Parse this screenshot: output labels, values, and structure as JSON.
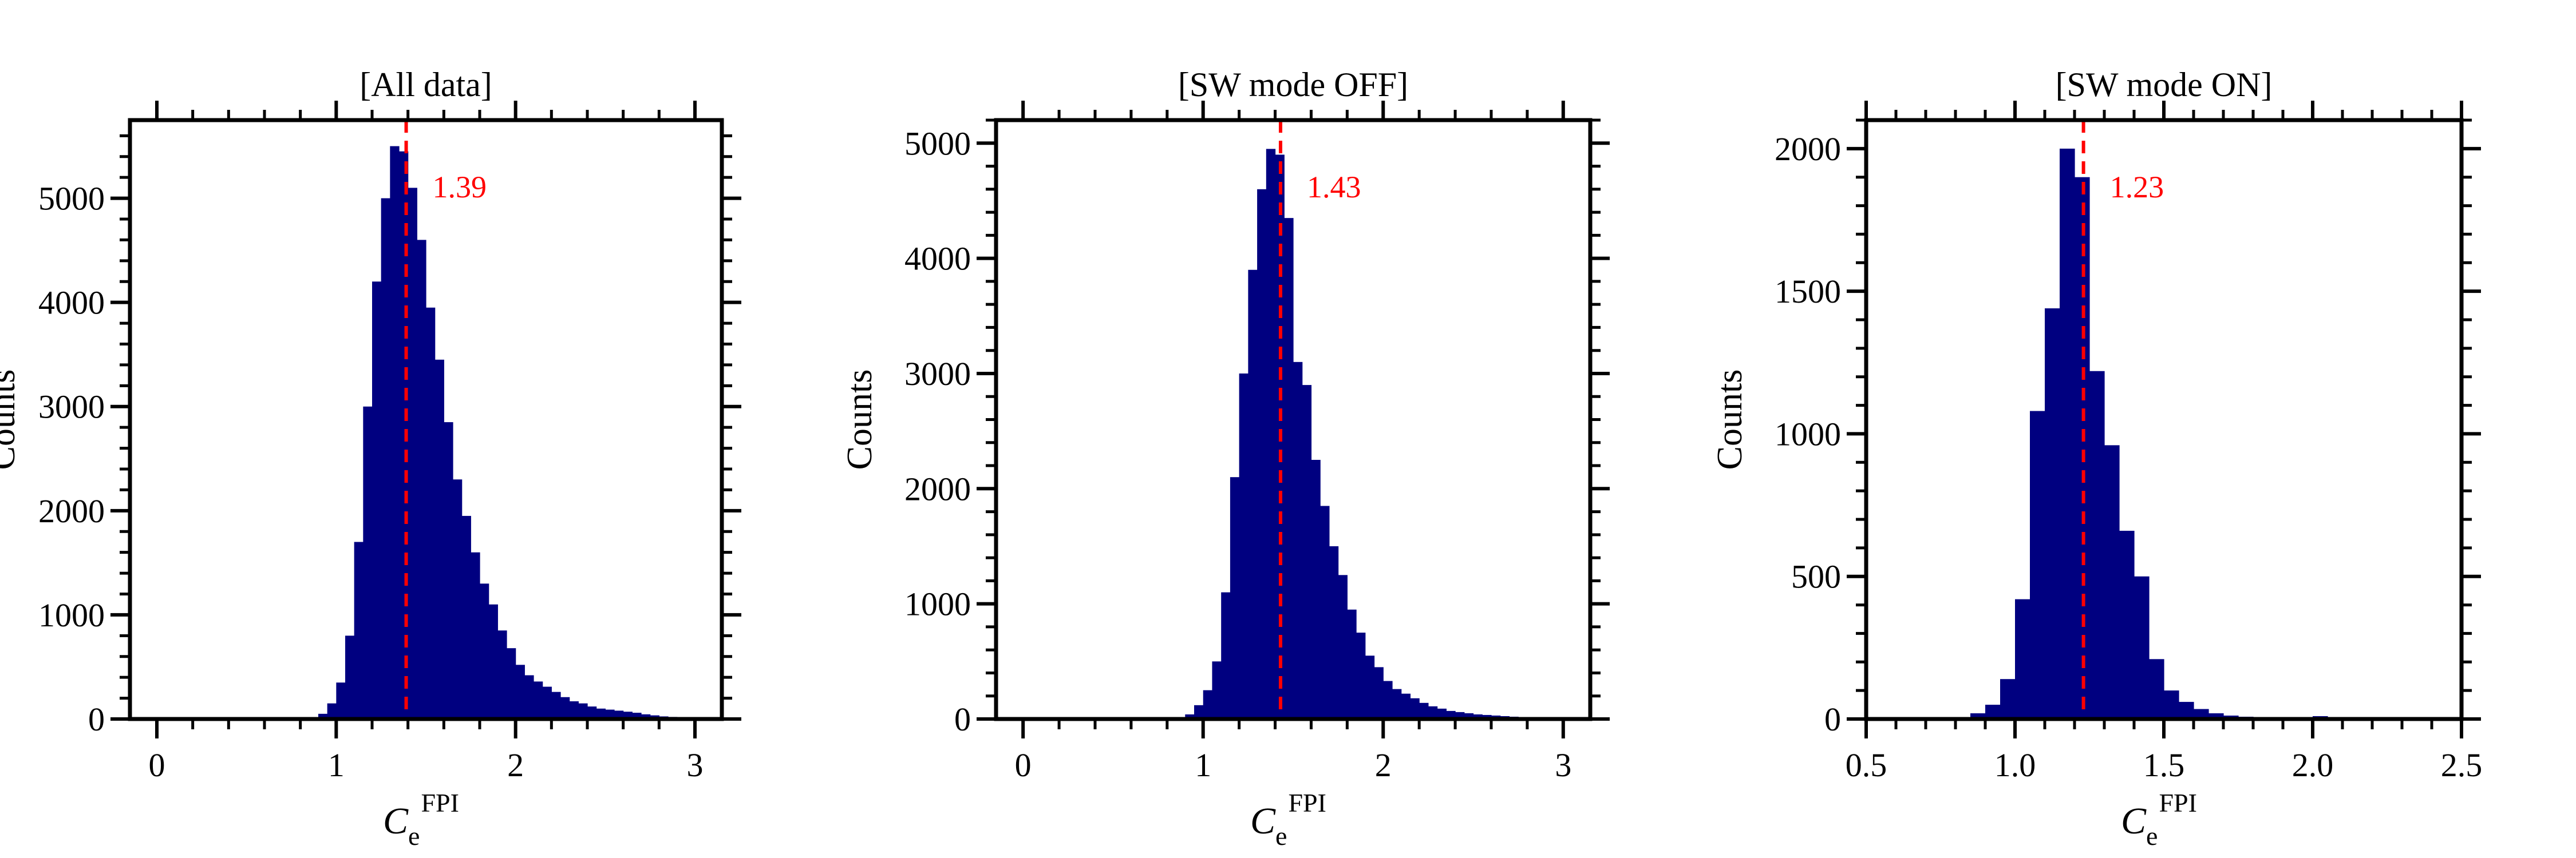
{
  "chart_data": [
    {
      "type": "bar",
      "title": "[All data]",
      "ylabel": "Counts",
      "xlabel": {
        "main": "C",
        "sub": "e",
        "sup": "FPI"
      },
      "xlim": [
        -0.15,
        3.15
      ],
      "ylim": [
        0,
        5750
      ],
      "xticks": [
        0,
        1,
        2,
        3
      ],
      "xtick_labels": [
        "0",
        "1",
        "2",
        "3"
      ],
      "yticks": [
        0,
        1000,
        2000,
        3000,
        4000,
        5000
      ],
      "ytick_labels": [
        "0",
        "1000",
        "2000",
        "3000",
        "4000",
        "5000"
      ],
      "bin_width": 0.05,
      "bins": [
        [
          0.9,
          0.95,
          50
        ],
        [
          0.95,
          1.0,
          150
        ],
        [
          1.0,
          1.05,
          350
        ],
        [
          1.05,
          1.1,
          800
        ],
        [
          1.1,
          1.15,
          1700
        ],
        [
          1.15,
          1.2,
          3000
        ],
        [
          1.2,
          1.25,
          4200
        ],
        [
          1.25,
          1.3,
          5000
        ],
        [
          1.3,
          1.35,
          5500
        ],
        [
          1.35,
          1.4,
          5450
        ],
        [
          1.4,
          1.45,
          5100
        ],
        [
          1.45,
          1.5,
          4600
        ],
        [
          1.5,
          1.55,
          3950
        ],
        [
          1.55,
          1.6,
          3450
        ],
        [
          1.6,
          1.65,
          2850
        ],
        [
          1.65,
          1.7,
          2300
        ],
        [
          1.7,
          1.75,
          1950
        ],
        [
          1.75,
          1.8,
          1600
        ],
        [
          1.8,
          1.85,
          1300
        ],
        [
          1.85,
          1.9,
          1100
        ],
        [
          1.9,
          1.95,
          850
        ],
        [
          1.95,
          2.0,
          680
        ],
        [
          2.0,
          2.05,
          520
        ],
        [
          2.05,
          2.1,
          420
        ],
        [
          2.1,
          2.15,
          360
        ],
        [
          2.15,
          2.2,
          310
        ],
        [
          2.2,
          2.25,
          260
        ],
        [
          2.25,
          2.3,
          210
        ],
        [
          2.3,
          2.35,
          170
        ],
        [
          2.35,
          2.4,
          150
        ],
        [
          2.4,
          2.45,
          120
        ],
        [
          2.45,
          2.5,
          100
        ],
        [
          2.5,
          2.55,
          90
        ],
        [
          2.55,
          2.6,
          80
        ],
        [
          2.6,
          2.65,
          70
        ],
        [
          2.65,
          2.7,
          60
        ],
        [
          2.7,
          2.75,
          45
        ],
        [
          2.75,
          2.8,
          35
        ],
        [
          2.8,
          2.85,
          25
        ],
        [
          2.85,
          2.9,
          20
        ]
      ],
      "median_line": 1.39,
      "median_label": "1.39",
      "bar_color": "#000080",
      "line_color": "#ff0000"
    },
    {
      "type": "bar",
      "title": "[SW mode OFF]",
      "ylabel": "Counts",
      "xlabel": {
        "main": "C",
        "sub": "e",
        "sup": "FPI"
      },
      "xlim": [
        -0.15,
        3.15
      ],
      "ylim": [
        0,
        5200
      ],
      "xticks": [
        0,
        1,
        2,
        3
      ],
      "xtick_labels": [
        "0",
        "1",
        "2",
        "3"
      ],
      "yticks": [
        0,
        1000,
        2000,
        3000,
        4000,
        5000
      ],
      "ytick_labels": [
        "0",
        "1000",
        "2000",
        "3000",
        "4000",
        "5000"
      ],
      "bin_width": 0.05,
      "bins": [
        [
          0.9,
          0.95,
          40
        ],
        [
          0.95,
          1.0,
          120
        ],
        [
          1.0,
          1.05,
          250
        ],
        [
          1.05,
          1.1,
          500
        ],
        [
          1.1,
          1.15,
          1100
        ],
        [
          1.15,
          1.2,
          2100
        ],
        [
          1.2,
          1.25,
          3000
        ],
        [
          1.25,
          1.3,
          3900
        ],
        [
          1.3,
          1.35,
          4600
        ],
        [
          1.35,
          1.4,
          4950
        ],
        [
          1.4,
          1.45,
          4900
        ],
        [
          1.45,
          1.5,
          4350
        ],
        [
          1.5,
          1.55,
          3100
        ],
        [
          1.55,
          1.6,
          2900
        ],
        [
          1.6,
          1.65,
          2250
        ],
        [
          1.65,
          1.7,
          1850
        ],
        [
          1.7,
          1.75,
          1500
        ],
        [
          1.75,
          1.8,
          1250
        ],
        [
          1.8,
          1.85,
          950
        ],
        [
          1.85,
          1.9,
          750
        ],
        [
          1.9,
          1.95,
          550
        ],
        [
          1.95,
          2.0,
          450
        ],
        [
          2.0,
          2.05,
          330
        ],
        [
          2.05,
          2.1,
          260
        ],
        [
          2.1,
          2.15,
          220
        ],
        [
          2.15,
          2.2,
          180
        ],
        [
          2.2,
          2.25,
          140
        ],
        [
          2.25,
          2.3,
          110
        ],
        [
          2.3,
          2.35,
          90
        ],
        [
          2.35,
          2.4,
          70
        ],
        [
          2.4,
          2.45,
          60
        ],
        [
          2.45,
          2.5,
          50
        ],
        [
          2.5,
          2.55,
          40
        ],
        [
          2.55,
          2.6,
          35
        ],
        [
          2.6,
          2.65,
          30
        ],
        [
          2.65,
          2.7,
          25
        ],
        [
          2.7,
          2.75,
          20
        ],
        [
          2.75,
          2.8,
          15
        ]
      ],
      "median_line": 1.43,
      "median_label": "1.43",
      "bar_color": "#000080",
      "line_color": "#ff0000"
    },
    {
      "type": "bar",
      "title": "[SW mode ON]",
      "ylabel": "Counts",
      "xlabel": {
        "main": "C",
        "sub": "e",
        "sup": "FPI"
      },
      "xlim": [
        0.5,
        2.5
      ],
      "ylim": [
        0,
        2100
      ],
      "xticks": [
        0.5,
        1.0,
        1.5,
        2.0,
        2.5
      ],
      "xtick_labels": [
        "0.5",
        "1.0",
        "1.5",
        "2.0",
        "2.5"
      ],
      "yticks": [
        0,
        500,
        1000,
        1500,
        2000
      ],
      "ytick_labels": [
        "0",
        "500",
        "1000",
        "1500",
        "2000"
      ],
      "bin_width": 0.05,
      "bins": [
        [
          0.8,
          0.85,
          5
        ],
        [
          0.85,
          0.9,
          20
        ],
        [
          0.9,
          0.95,
          50
        ],
        [
          0.95,
          1.0,
          140
        ],
        [
          1.0,
          1.05,
          420
        ],
        [
          1.05,
          1.1,
          1080
        ],
        [
          1.1,
          1.15,
          1440
        ],
        [
          1.15,
          1.2,
          2000
        ],
        [
          1.2,
          1.25,
          1900
        ],
        [
          1.25,
          1.3,
          1220
        ],
        [
          1.3,
          1.35,
          960
        ],
        [
          1.35,
          1.4,
          660
        ],
        [
          1.4,
          1.45,
          500
        ],
        [
          1.45,
          1.5,
          210
        ],
        [
          1.5,
          1.55,
          100
        ],
        [
          1.55,
          1.6,
          60
        ],
        [
          1.6,
          1.65,
          35
        ],
        [
          1.65,
          1.7,
          20
        ],
        [
          1.7,
          1.75,
          12
        ],
        [
          1.75,
          1.8,
          8
        ],
        [
          1.8,
          1.85,
          5
        ],
        [
          1.85,
          1.9,
          3
        ],
        [
          1.9,
          1.95,
          2
        ],
        [
          1.95,
          2.0,
          2
        ],
        [
          2.0,
          2.05,
          10
        ],
        [
          2.05,
          2.1,
          1
        ]
      ],
      "median_line": 1.23,
      "median_label": "1.23",
      "bar_color": "#000080",
      "line_color": "#ff0000"
    }
  ]
}
